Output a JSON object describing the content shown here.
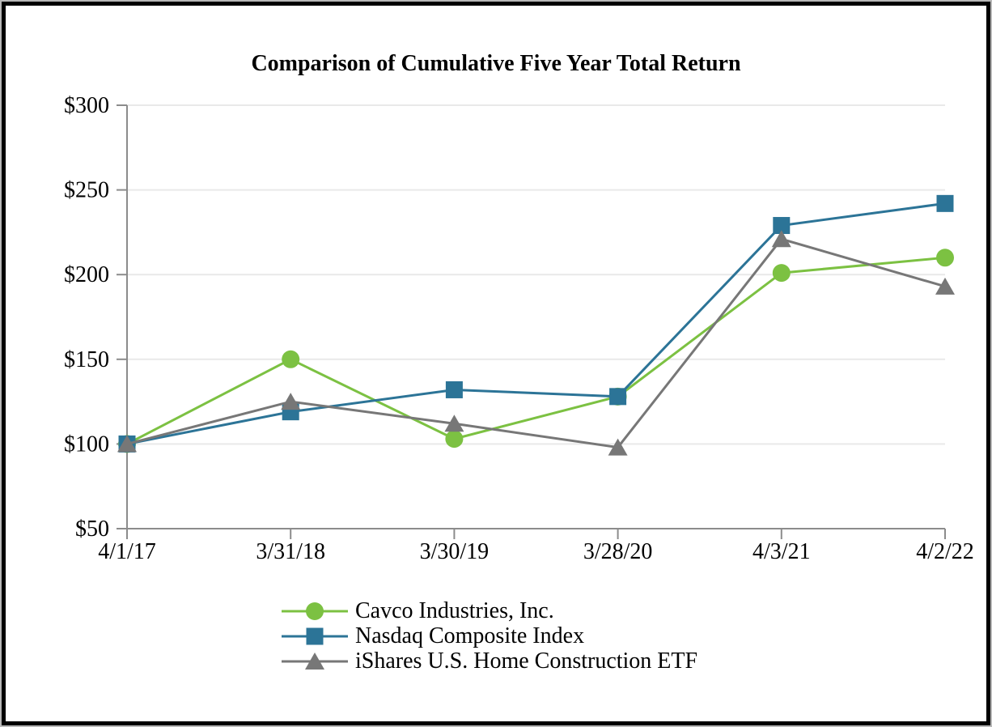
{
  "page": {
    "title": "Comparison of Cumulative Five Year Total Return"
  },
  "colors": {
    "axis": "#8C8C8C",
    "gridline": "#E9E9E9",
    "page_border": "#000000",
    "cavco_green": "#7CC142",
    "nasdaq_blue": "#2C7497",
    "ishares_gray": "#777777"
  },
  "chart_data": {
    "type": "line",
    "title": "Comparison of Cumulative Five Year Total Return",
    "xlabel": "",
    "ylabel": "",
    "x_categories": [
      "4/1/17",
      "3/31/18",
      "3/30/19",
      "3/28/20",
      "4/3/21",
      "4/2/22"
    ],
    "ylim": [
      50,
      300
    ],
    "y_ticks": [
      300,
      250,
      200,
      150,
      100,
      50
    ],
    "y_tick_prefix": "$",
    "grid": "horizontal-only",
    "legend_position": "bottom-center",
    "series": [
      {
        "name": "Cavco Industries, Inc.",
        "marker": "circle",
        "color": "#7CC142",
        "values": [
          100,
          150,
          103,
          128,
          201,
          210
        ]
      },
      {
        "name": "Nasdaq Composite Index",
        "marker": "square",
        "color": "#2C7497",
        "values": [
          100,
          119,
          132,
          128,
          229,
          242
        ]
      },
      {
        "name": "iShares U.S. Home Construction ETF",
        "marker": "triangle",
        "color": "#777777",
        "values": [
          100,
          125,
          112,
          98,
          221,
          193
        ]
      }
    ]
  }
}
